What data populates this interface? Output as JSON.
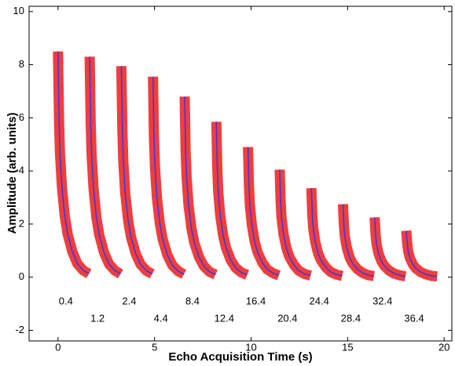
{
  "chart_data": {
    "type": "line",
    "x_label": "Echo Acquisition Time (s)",
    "y_label": "Amplitude (arb. units)",
    "xlim": [
      -1.5,
      20.4
    ],
    "xticks": [
      0,
      5,
      10,
      15,
      20
    ],
    "ylim": [
      -2.4,
      10.2
    ],
    "yticks": [
      -2,
      0,
      2,
      4,
      6,
      8,
      10
    ],
    "grid": false,
    "color": "#3b3bdc",
    "data_color": "#f02828",
    "x": [
      0,
      0.05,
      0.1,
      0.2,
      0.35,
      0.5,
      0.75,
      1,
      1.3,
      1.6,
      null,
      1.64,
      1.69,
      1.74,
      1.84,
      1.99,
      2.14,
      2.39,
      2.64,
      2.94,
      3.24,
      null,
      3.28,
      3.33,
      3.38,
      3.48,
      3.63,
      3.78,
      4.03,
      4.28,
      4.58,
      4.88,
      null,
      4.92,
      4.97,
      5.02,
      5.12,
      5.27,
      5.42,
      5.67,
      5.92,
      6.22,
      6.52,
      null,
      6.56,
      6.61,
      6.66,
      6.76,
      6.91,
      7.06,
      7.31,
      7.56,
      7.86,
      8.16,
      null,
      8.2,
      8.25,
      8.3,
      8.4,
      8.55,
      8.7,
      8.95,
      9.2,
      9.5,
      9.8,
      null,
      9.84,
      9.89,
      9.94,
      10.04,
      10.19,
      10.34,
      10.59,
      10.84,
      11.14,
      11.44,
      null,
      11.48,
      11.53,
      11.58,
      11.68,
      11.83,
      11.98,
      12.23,
      12.48,
      12.78,
      13.08,
      null,
      13.12,
      13.17,
      13.22,
      13.32,
      13.47,
      13.62,
      13.87,
      14.12,
      14.42,
      14.72,
      null,
      14.76,
      14.81,
      14.86,
      14.96,
      15.11,
      15.26,
      15.51,
      15.76,
      16.06,
      16.36,
      null,
      16.4,
      16.45,
      16.5,
      16.6,
      16.75,
      16.9,
      17.15,
      17.4,
      17.7,
      18.0,
      null,
      18.04,
      18.09,
      18.14,
      18.24,
      18.39,
      18.54,
      18.79,
      19.04,
      19.34,
      19.64
    ],
    "values": [
      8.5,
      5.95,
      4.68,
      3.4,
      2.3,
      1.62,
      0.94,
      0.51,
      0.26,
      0.13,
      null,
      8.3,
      5.81,
      4.57,
      3.32,
      2.24,
      1.58,
      0.91,
      0.5,
      0.25,
      0.12,
      null,
      7.95,
      5.57,
      4.37,
      3.18,
      2.15,
      1.51,
      0.87,
      0.48,
      0.24,
      0.12,
      null,
      7.55,
      5.29,
      4.15,
      3.02,
      2.04,
      1.43,
      0.83,
      0.45,
      0.23,
      0.11,
      null,
      6.8,
      4.76,
      3.74,
      2.72,
      1.84,
      1.29,
      0.75,
      0.41,
      0.2,
      0.1,
      null,
      5.85,
      4.1,
      3.22,
      2.34,
      1.58,
      1.11,
      0.64,
      0.35,
      0.18,
      0.09,
      null,
      4.9,
      3.43,
      2.7,
      1.96,
      1.32,
      0.93,
      0.54,
      0.29,
      0.15,
      0.07,
      null,
      4.05,
      2.84,
      2.23,
      1.62,
      1.09,
      0.77,
      0.45,
      0.24,
      0.12,
      0.06,
      null,
      3.35,
      2.35,
      1.84,
      1.34,
      0.9,
      0.64,
      0.37,
      0.2,
      0.1,
      0.05,
      null,
      2.75,
      1.93,
      1.51,
      1.1,
      0.74,
      0.52,
      0.3,
      0.17,
      0.08,
      0.04,
      null,
      2.25,
      1.58,
      1.24,
      0.9,
      0.61,
      0.43,
      0.25,
      0.14,
      0.07,
      0.03,
      null,
      1.75,
      1.23,
      0.96,
      0.7,
      0.47,
      0.33,
      0.19,
      0.11,
      0.05,
      0.03
    ],
    "annotations": [
      0.4,
      1.2,
      2.4,
      4.4,
      8.4,
      12.4,
      16.4,
      20.4,
      24.4,
      28.4,
      32.4,
      36.4
    ]
  }
}
